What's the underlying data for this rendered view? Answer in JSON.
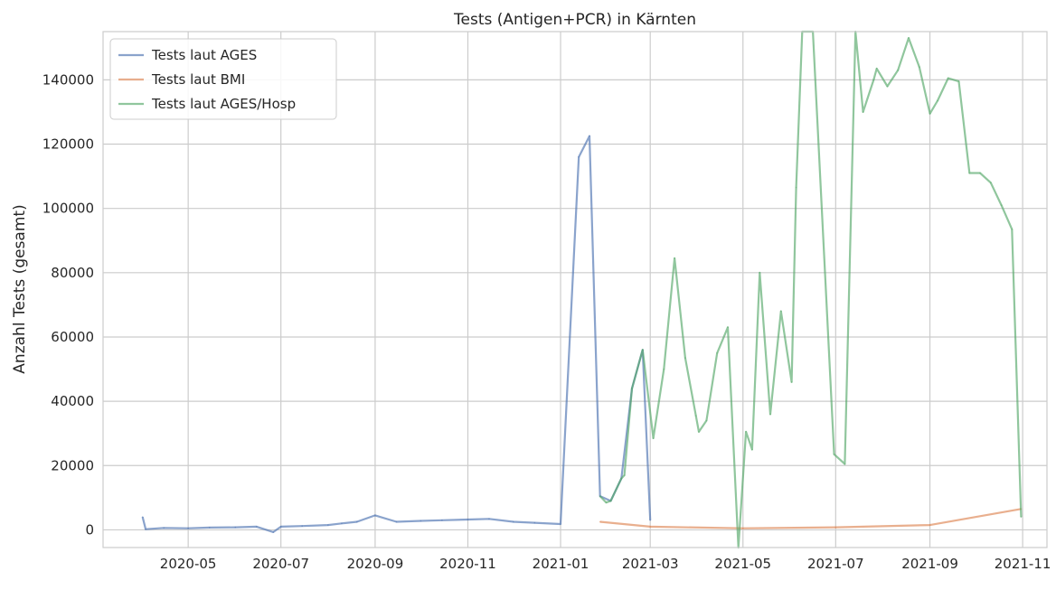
{
  "chart_data": {
    "type": "line",
    "title": "Tests (Antigen+PCR) in Kärnten",
    "xlabel": "",
    "ylabel": "Anzahl Tests (gesamt)",
    "xlim": [
      "2020-03-06",
      "2021-11-17"
    ],
    "ylim": [
      -5500,
      155000
    ],
    "x_ticks": [
      "2020-05",
      "2020-07",
      "2020-09",
      "2020-11",
      "2021-01",
      "2021-03",
      "2021-05",
      "2021-07",
      "2021-09",
      "2021-11"
    ],
    "y_ticks": [
      0,
      20000,
      40000,
      60000,
      80000,
      100000,
      120000,
      140000
    ],
    "grid": true,
    "legend_position": "upper left",
    "series": [
      {
        "name": "Tests laut AGES",
        "color": "#4c72b0",
        "data": [
          [
            "2020-04-01",
            4000
          ],
          [
            "2020-04-03",
            200
          ],
          [
            "2020-04-15",
            600
          ],
          [
            "2020-05-01",
            500
          ],
          [
            "2020-05-15",
            700
          ],
          [
            "2020-06-01",
            800
          ],
          [
            "2020-06-15",
            1000
          ],
          [
            "2020-06-26",
            -700
          ],
          [
            "2020-07-01",
            1000
          ],
          [
            "2020-07-15",
            1200
          ],
          [
            "2020-08-01",
            1500
          ],
          [
            "2020-08-10",
            2000
          ],
          [
            "2020-08-20",
            2500
          ],
          [
            "2020-09-01",
            4500
          ],
          [
            "2020-09-15",
            2500
          ],
          [
            "2020-10-01",
            2800
          ],
          [
            "2020-10-15",
            3000
          ],
          [
            "2020-11-01",
            3200
          ],
          [
            "2020-11-15",
            3400
          ],
          [
            "2020-12-01",
            2500
          ],
          [
            "2020-12-15",
            2200
          ],
          [
            "2021-01-01",
            1800
          ],
          [
            "2021-01-13",
            116000
          ],
          [
            "2021-01-20",
            122500
          ],
          [
            "2021-01-27",
            10500
          ],
          [
            "2021-02-03",
            9000
          ],
          [
            "2021-02-10",
            16000
          ],
          [
            "2021-02-17",
            44000
          ],
          [
            "2021-02-24",
            56000
          ],
          [
            "2021-03-01",
            3000
          ]
        ]
      },
      {
        "name": "Tests laut BMI",
        "color": "#dd8452",
        "data": [
          [
            "2021-01-27",
            2500
          ],
          [
            "2021-03-01",
            1000
          ],
          [
            "2021-05-01",
            500
          ],
          [
            "2021-07-01",
            800
          ],
          [
            "2021-09-01",
            1500
          ],
          [
            "2021-10-31",
            6500
          ]
        ]
      },
      {
        "name": "Tests laut AGES/Hosp",
        "color": "#55a868",
        "data": [
          [
            "2021-01-27",
            10500
          ],
          [
            "2021-01-31",
            8500
          ],
          [
            "2021-02-03",
            9000
          ],
          [
            "2021-02-10",
            16000
          ],
          [
            "2021-02-12",
            17000
          ],
          [
            "2021-02-17",
            44000
          ],
          [
            "2021-02-24",
            56000
          ],
          [
            "2021-03-03",
            28500
          ],
          [
            "2021-03-10",
            50000
          ],
          [
            "2021-03-17",
            84500
          ],
          [
            "2021-03-24",
            53500
          ],
          [
            "2021-03-31",
            35500
          ],
          [
            "2021-04-02",
            30500
          ],
          [
            "2021-04-07",
            34000
          ],
          [
            "2021-04-14",
            55000
          ],
          [
            "2021-04-21",
            63000
          ],
          [
            "2021-04-28",
            -5500
          ],
          [
            "2021-05-03",
            30500
          ],
          [
            "2021-05-07",
            25000
          ],
          [
            "2021-05-12",
            80000
          ],
          [
            "2021-05-19",
            36000
          ],
          [
            "2021-05-26",
            68000
          ],
          [
            "2021-06-02",
            46000
          ],
          [
            "2021-06-05",
            106500
          ],
          [
            "2021-06-09",
            155000
          ],
          [
            "2021-06-16",
            155000
          ],
          [
            "2021-06-30",
            23500
          ],
          [
            "2021-07-07",
            20500
          ],
          [
            "2021-07-14",
            155000
          ],
          [
            "2021-07-19",
            130000
          ],
          [
            "2021-07-26",
            140000
          ],
          [
            "2021-07-28",
            143500
          ],
          [
            "2021-08-04",
            138000
          ],
          [
            "2021-08-11",
            143000
          ],
          [
            "2021-08-18",
            153000
          ],
          [
            "2021-08-25",
            144000
          ],
          [
            "2021-09-01",
            129500
          ],
          [
            "2021-09-06",
            133500
          ],
          [
            "2021-09-13",
            140500
          ],
          [
            "2021-09-20",
            139500
          ],
          [
            "2021-09-27",
            111000
          ],
          [
            "2021-10-04",
            111000
          ],
          [
            "2021-10-11",
            108000
          ],
          [
            "2021-10-18",
            101000
          ],
          [
            "2021-10-25",
            93500
          ],
          [
            "2021-10-31",
            4000
          ]
        ]
      }
    ]
  }
}
